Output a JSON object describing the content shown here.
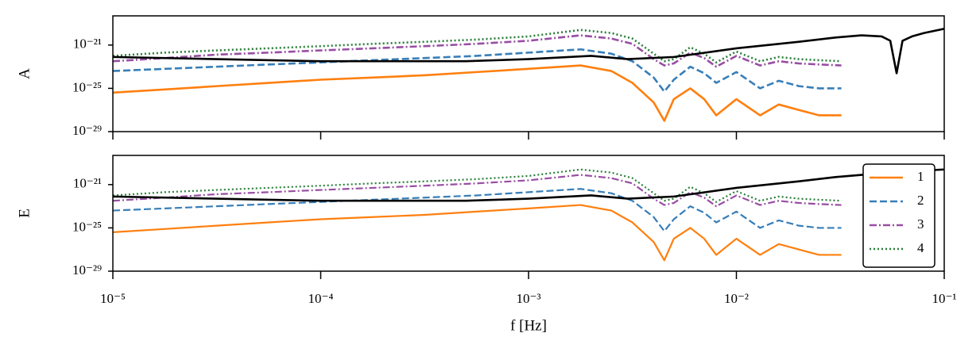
{
  "chart_data": [
    {
      "type": "line",
      "ylabel": "A",
      "xscale": "log",
      "yscale": "log",
      "xlim": [
        1e-05,
        0.1
      ],
      "ylim": [
        1e-29,
        5e-19
      ],
      "xticks": [
        1e-05,
        0.0001,
        0.001,
        0.01,
        0.1
      ],
      "show_xticklabels": false,
      "yticks": [
        {
          "value": 1e-29,
          "label": "10⁻²⁹"
        },
        {
          "value": 1e-25,
          "label": "10⁻²⁵"
        },
        {
          "value": 1e-21,
          "label": "10⁻²¹"
        }
      ],
      "series": [
        {
          "color": "#ff7f0e",
          "linestyle": "solid",
          "x": [
            1e-05,
            1.78e-05,
            3.16e-05,
            5.62e-05,
            0.0001,
            0.000178,
            0.000316,
            0.000562,
            0.001,
            0.00178,
            0.0025,
            0.00316,
            0.004,
            0.0045,
            0.005,
            0.006,
            0.007,
            0.008,
            0.01,
            0.013,
            0.016,
            0.02,
            0.025,
            0.032
          ],
          "values": [
            4e-26,
            7.9e-26,
            1.6e-25,
            3.2e-25,
            6.3e-25,
            1e-24,
            1.6e-24,
            3.2e-24,
            6.3e-24,
            1.3e-23,
            4e-24,
            3.2e-25,
            5e-27,
            1e-28,
            1e-26,
            1e-25,
            1e-26,
            3.2e-28,
            1e-26,
            3.2e-28,
            3.2e-27,
            1e-27,
            3.2e-28,
            3.2e-28
          ]
        },
        {
          "color": "#377eb8",
          "linestyle": "dashed",
          "x": [
            1e-05,
            1.78e-05,
            3.16e-05,
            5.62e-05,
            0.0001,
            0.000178,
            0.000316,
            0.000562,
            0.001,
            0.00178,
            0.0025,
            0.00316,
            0.004,
            0.0045,
            0.005,
            0.006,
            0.007,
            0.008,
            0.01,
            0.013,
            0.016,
            0.02,
            0.025,
            0.032
          ],
          "values": [
            4e-24,
            6.3e-24,
            1e-23,
            1.6e-23,
            2.5e-23,
            4e-23,
            6.3e-23,
            1e-22,
            2e-22,
            4e-22,
            1.6e-22,
            3.2e-23,
            1e-24,
            5e-26,
            6.3e-25,
            1e-23,
            2.5e-24,
            3.2e-25,
            3.2e-24,
            1e-25,
            5e-25,
            1.6e-25,
            1e-25,
            1e-25
          ]
        },
        {
          "color": "#984ea3",
          "linestyle": "dashdot",
          "x": [
            1e-05,
            1.78e-05,
            3.16e-05,
            5.62e-05,
            0.0001,
            0.000178,
            0.000316,
            0.000562,
            0.001,
            0.00178,
            0.0025,
            0.00316,
            0.004,
            0.0045,
            0.005,
            0.006,
            0.007,
            0.008,
            0.01,
            0.013,
            0.016,
            0.02,
            0.025,
            0.032
          ],
          "values": [
            3.2e-23,
            6.3e-23,
            1.3e-22,
            2e-22,
            3.2e-22,
            5e-22,
            7.9e-22,
            1.3e-21,
            2.5e-21,
            7.9e-21,
            4e-21,
            1.3e-21,
            5e-23,
            1.3e-23,
            2e-23,
            2e-22,
            6.3e-23,
            1e-23,
            1e-22,
            1.3e-23,
            3.2e-23,
            2e-23,
            1.6e-23,
            1.3e-23
          ]
        },
        {
          "color": "#2a7f3a",
          "linestyle": "dotted",
          "x": [
            1e-05,
            1.78e-05,
            3.16e-05,
            5.62e-05,
            0.0001,
            0.000178,
            0.000316,
            0.000562,
            0.001,
            0.00178,
            0.0025,
            0.00316,
            0.004,
            0.0045,
            0.005,
            0.006,
            0.007,
            0.008,
            0.01,
            0.013,
            0.016,
            0.02,
            0.025,
            0.032
          ],
          "values": [
            1e-22,
            2e-22,
            3.2e-22,
            5e-22,
            7.9e-22,
            1.3e-21,
            2e-21,
            3.2e-21,
            6.3e-21,
            2.5e-20,
            1.3e-20,
            4e-21,
            1.6e-22,
            3.2e-23,
            5e-23,
            6.3e-22,
            1.6e-22,
            2.5e-23,
            2.5e-22,
            3.2e-23,
            7.9e-23,
            5e-23,
            4e-23,
            3.2e-23
          ]
        },
        {
          "color": "#000000",
          "linestyle": "solid",
          "x": [
            1e-05,
            0.0001,
            0.0005,
            0.001,
            0.002,
            0.003,
            0.005,
            0.01,
            0.02,
            0.03,
            0.04,
            0.05,
            0.055,
            0.059,
            0.063,
            0.07,
            0.08,
            0.1
          ],
          "values": [
            7.9e-23,
            3.2e-23,
            3.2e-23,
            5e-23,
            1e-22,
            5e-23,
            7.9e-23,
            5e-22,
            2e-21,
            5e-21,
            7.9e-21,
            6.3e-21,
            2.5e-21,
            2.5e-24,
            2.5e-21,
            6.3e-21,
            1.3e-20,
            3.2e-20
          ]
        }
      ]
    },
    {
      "type": "line",
      "ylabel": "E",
      "xlabel": "f [Hz]",
      "xscale": "log",
      "yscale": "log",
      "xlim": [
        1e-05,
        0.1
      ],
      "ylim": [
        1e-29,
        5e-19
      ],
      "xticks": [
        {
          "value": 1e-05,
          "label": "10⁻⁵"
        },
        {
          "value": 0.0001,
          "label": "10⁻⁴"
        },
        {
          "value": 0.001,
          "label": "10⁻³"
        },
        {
          "value": 0.01,
          "label": "10⁻²"
        },
        {
          "value": 0.1,
          "label": "10⁻¹"
        }
      ],
      "show_xticklabels": true,
      "yticks": [
        {
          "value": 1e-29,
          "label": "10⁻²⁹"
        },
        {
          "value": 1e-25,
          "label": "10⁻²⁵"
        },
        {
          "value": 1e-21,
          "label": "10⁻²¹"
        }
      ],
      "legend": "upper right",
      "series": [
        {
          "name": "1",
          "color": "#ff7f0e",
          "linestyle": "solid",
          "x": [
            1e-05,
            1.78e-05,
            3.16e-05,
            5.62e-05,
            0.0001,
            0.000178,
            0.000316,
            0.000562,
            0.001,
            0.00178,
            0.0025,
            0.00316,
            0.004,
            0.0045,
            0.005,
            0.006,
            0.007,
            0.008,
            0.01,
            0.013,
            0.016,
            0.02,
            0.025,
            0.032
          ],
          "values": [
            4e-26,
            7.9e-26,
            1.6e-25,
            3.2e-25,
            6.3e-25,
            1e-24,
            1.6e-24,
            3.2e-24,
            6.3e-24,
            1.3e-23,
            4e-24,
            3.2e-25,
            5e-27,
            1e-28,
            1e-26,
            1e-25,
            1e-26,
            3.2e-28,
            1e-26,
            3.2e-28,
            3.2e-27,
            1e-27,
            3.2e-28,
            3.2e-28
          ]
        },
        {
          "name": "2",
          "color": "#377eb8",
          "linestyle": "dashed",
          "x": [
            1e-05,
            1.78e-05,
            3.16e-05,
            5.62e-05,
            0.0001,
            0.000178,
            0.000316,
            0.000562,
            0.001,
            0.00178,
            0.0025,
            0.00316,
            0.004,
            0.0045,
            0.005,
            0.006,
            0.007,
            0.008,
            0.01,
            0.013,
            0.016,
            0.02,
            0.025,
            0.032
          ],
          "values": [
            4e-24,
            6.3e-24,
            1e-23,
            1.6e-23,
            2.5e-23,
            4e-23,
            6.3e-23,
            1e-22,
            2e-22,
            4e-22,
            1.6e-22,
            3.2e-23,
            1e-24,
            5e-26,
            6.3e-25,
            1e-23,
            2.5e-24,
            3.2e-25,
            3.2e-24,
            1e-25,
            5e-25,
            1.6e-25,
            1e-25,
            1e-25
          ]
        },
        {
          "name": "3",
          "color": "#984ea3",
          "linestyle": "dashdot",
          "x": [
            1e-05,
            1.78e-05,
            3.16e-05,
            5.62e-05,
            0.0001,
            0.000178,
            0.000316,
            0.000562,
            0.001,
            0.00178,
            0.0025,
            0.00316,
            0.004,
            0.0045,
            0.005,
            0.006,
            0.007,
            0.008,
            0.01,
            0.013,
            0.016,
            0.02,
            0.025,
            0.032
          ],
          "values": [
            3.2e-23,
            6.3e-23,
            1.3e-22,
            2e-22,
            3.2e-22,
            5e-22,
            7.9e-22,
            1.3e-21,
            2.5e-21,
            7.9e-21,
            4e-21,
            1.3e-21,
            5e-23,
            1.3e-23,
            2e-23,
            2e-22,
            6.3e-23,
            1e-23,
            1e-22,
            1.3e-23,
            3.2e-23,
            2e-23,
            1.6e-23,
            1.3e-23
          ]
        },
        {
          "name": "4",
          "color": "#2a7f3a",
          "linestyle": "dotted",
          "x": [
            1e-05,
            1.78e-05,
            3.16e-05,
            5.62e-05,
            0.0001,
            0.000178,
            0.000316,
            0.000562,
            0.001,
            0.00178,
            0.0025,
            0.00316,
            0.004,
            0.0045,
            0.005,
            0.006,
            0.007,
            0.008,
            0.01,
            0.013,
            0.016,
            0.02,
            0.025,
            0.032
          ],
          "values": [
            1e-22,
            2e-22,
            3.2e-22,
            5e-22,
            7.9e-22,
            1.3e-21,
            2e-21,
            3.2e-21,
            6.3e-21,
            2.5e-20,
            1.3e-20,
            4e-21,
            1.6e-22,
            3.2e-23,
            5e-23,
            6.3e-22,
            1.6e-22,
            2.5e-23,
            2.5e-22,
            3.2e-23,
            7.9e-23,
            5e-23,
            4e-23,
            3.2e-23
          ]
        },
        {
          "color": "#000000",
          "linestyle": "solid",
          "x": [
            1e-05,
            0.0001,
            0.0005,
            0.001,
            0.002,
            0.003,
            0.005,
            0.01,
            0.02,
            0.03,
            0.04,
            0.05,
            0.055,
            0.059,
            0.063,
            0.07,
            0.08,
            0.1
          ],
          "values": [
            7.9e-23,
            3.2e-23,
            3.2e-23,
            5e-23,
            1e-22,
            5e-23,
            7.9e-23,
            5e-22,
            2e-21,
            5e-21,
            7.9e-21,
            1.1e-20,
            1.3e-20,
            1.4e-20,
            1.6e-20,
            1.8e-20,
            2e-20,
            2.5e-20
          ]
        }
      ]
    }
  ]
}
